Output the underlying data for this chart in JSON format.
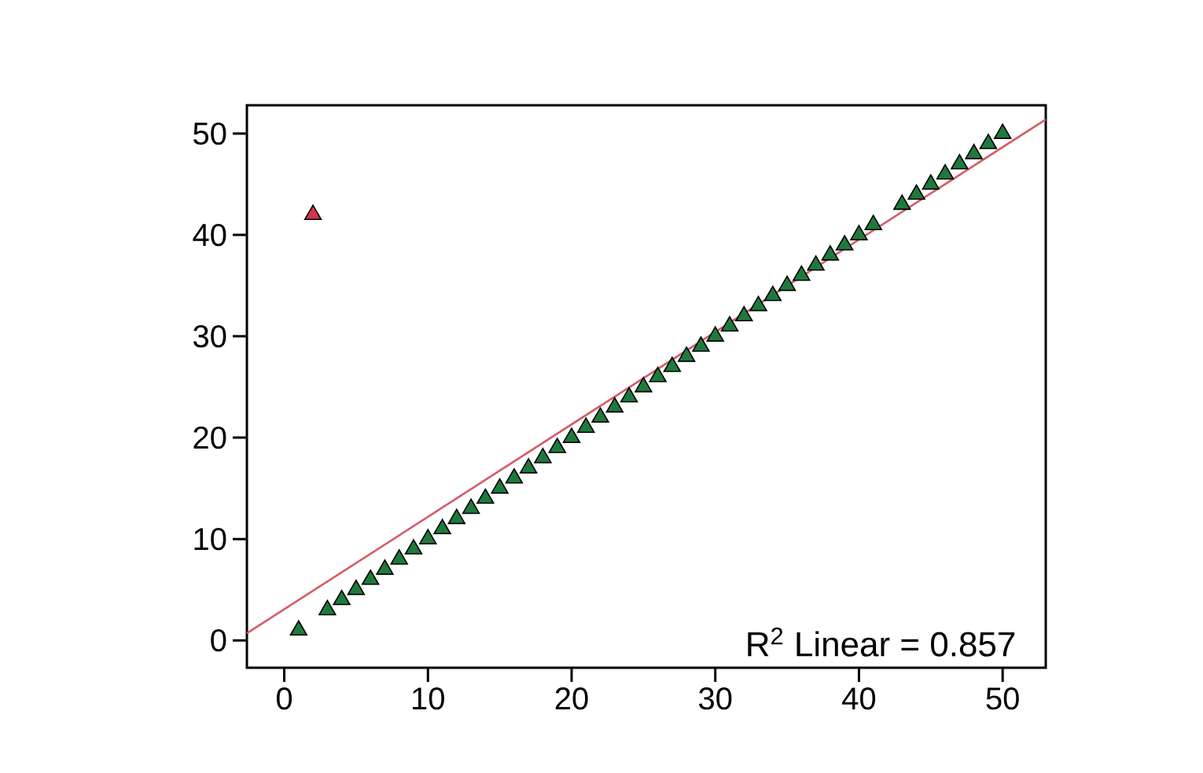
{
  "chart_data": {
    "type": "scatter",
    "xlim": [
      -2.6,
      53
    ],
    "ylim": [
      -2.7,
      52.8
    ],
    "xticks": [
      0,
      10,
      20,
      30,
      40,
      50
    ],
    "yticks": [
      0,
      10,
      20,
      30,
      40,
      50
    ],
    "grid": false,
    "marker": "triangle",
    "annotations": [
      "R$^{2}$ Linear = 0.857"
    ],
    "series": [
      {
        "color": "#1e7a3c",
        "x": [
          1,
          3,
          4,
          5,
          6,
          7,
          8,
          9,
          10,
          11,
          12,
          13,
          14,
          15,
          16,
          17,
          18,
          19,
          20,
          21,
          22,
          23,
          24,
          25,
          26,
          27,
          28,
          29,
          30,
          31,
          32,
          33,
          34,
          35,
          36,
          37,
          38,
          39,
          40,
          41,
          43,
          44,
          45,
          46,
          47,
          48,
          49,
          50
        ],
        "values": [
          1,
          3,
          4,
          5,
          6,
          7,
          8,
          9,
          10,
          11,
          12,
          13,
          14,
          15,
          16,
          17,
          18,
          19,
          20,
          21,
          22,
          23,
          24,
          25,
          26,
          27,
          28,
          29,
          30,
          31,
          32,
          33,
          34,
          35,
          36,
          37,
          38,
          39,
          40,
          41,
          43,
          44,
          45,
          46,
          47,
          48,
          49,
          50
        ]
      },
      {
        "color": "#d8334a",
        "x": [
          2
        ],
        "values": [
          42
        ]
      },
      {
        "type": "line",
        "marker": "none",
        "line_style": "solid",
        "color": "#d65a68",
        "x": [
          -2.6,
          53
        ],
        "values": [
          0.7,
          51.4
        ]
      }
    ]
  }
}
